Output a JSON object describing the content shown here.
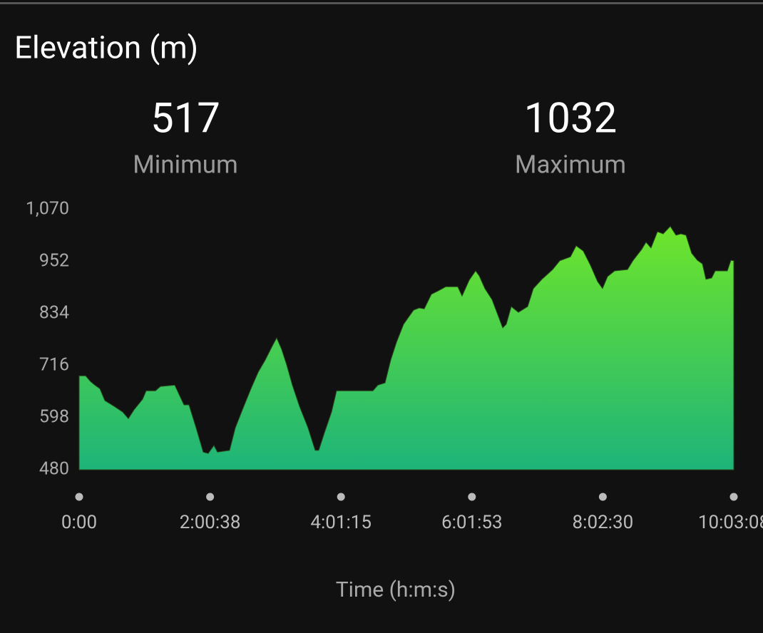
{
  "summary": [
    {
      "value": 517,
      "label": "Minimum"
    },
    {
      "value": 1032,
      "label": "Maximum"
    }
  ],
  "chart_data": {
    "type": "area",
    "title": "Elevation (m)",
    "x_label": "Time (h:m:s)",
    "gradient": [
      "#6ee52a",
      "#1db47a"
    ],
    "xlim": [
      0,
      36188
    ],
    "xticks": [
      {
        "value": 0,
        "label": "0:00"
      },
      {
        "value": 7238,
        "label": "2:00:38"
      },
      {
        "value": 14475,
        "label": "4:01:15"
      },
      {
        "value": 21713,
        "label": "6:01:53"
      },
      {
        "value": 28950,
        "label": "8:02:30"
      },
      {
        "value": 36188,
        "label": "10:03:08"
      }
    ],
    "ylim": [
      480,
      1070
    ],
    "yticks": [
      480,
      598,
      716,
      834,
      952,
      {
        "value": 1070,
        "label": "1,070"
      }
    ],
    "x": [
      0,
      355,
      631,
      867,
      1143,
      1419,
      1931,
      2405,
      2720,
      3035,
      3508,
      3705,
      4218,
      4494,
      5283,
      5795,
      6071,
      6465,
      6859,
      7135,
      7450,
      7647,
      8317,
      8633,
      9027,
      9500,
      9894,
      10288,
      10682,
      10919,
      11195,
      11471,
      11786,
      12180,
      12653,
      13048,
      13245,
      13560,
      13954,
      14230,
      16241,
      16517,
      16911,
      17226,
      17542,
      17936,
      18488,
      18803,
      19079,
      19473,
      19867,
      20261,
      20931,
      21168,
      21562,
      21917,
      22114,
      22429,
      22824,
      23415,
      23612,
      23888,
      24282,
      24794,
      25110,
      25583,
      26174,
      26568,
      27160,
      27475,
      27869,
      28263,
      28657,
      28933,
      29209,
      29603,
      30313,
      30628,
      31101,
      31338,
      31614,
      31969,
      32284,
      32679,
      32994,
      33271,
      33547,
      33862,
      34177,
      34453,
      34650,
      34966,
      35163,
      35833,
      36030,
      36188
    ],
    "values": [
      693,
      693,
      680,
      672,
      664,
      637,
      624,
      611,
      596,
      616,
      640,
      659,
      659,
      669,
      672,
      627,
      627,
      575,
      520,
      517,
      535,
      520,
      524,
      575,
      616,
      664,
      701,
      729,
      761,
      779,
      753,
      718,
      672,
      624,
      575,
      524,
      524,
      564,
      611,
      659,
      659,
      672,
      677,
      729,
      769,
      810,
      842,
      847,
      845,
      878,
      886,
      895,
      895,
      874,
      910,
      931,
      920,
      891,
      866,
      802,
      810,
      850,
      837,
      850,
      891,
      912,
      934,
      954,
      963,
      988,
      976,
      944,
      907,
      891,
      918,
      931,
      934,
      955,
      980,
      996,
      983,
      1020,
      1015,
      1032,
      1012,
      1015,
      1012,
      971,
      955,
      947,
      912,
      915,
      931,
      931,
      955,
      954
    ]
  }
}
